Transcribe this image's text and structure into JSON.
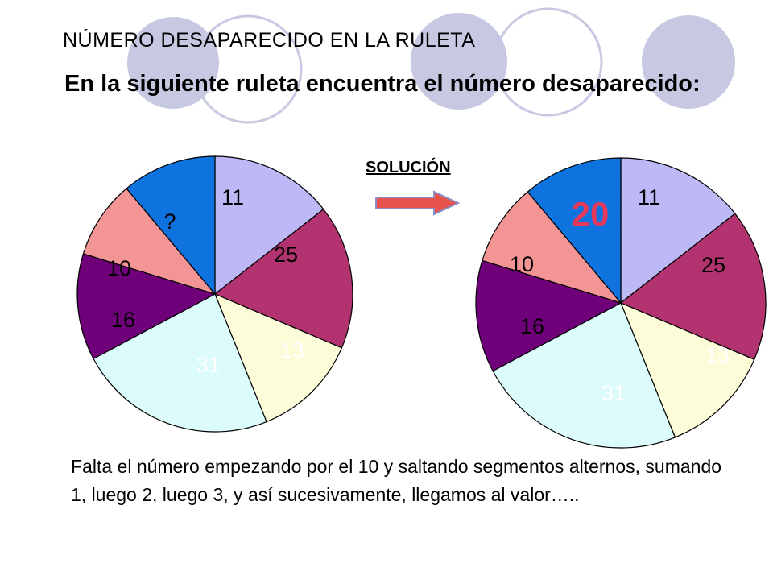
{
  "title": "NÚMERO DESAPARECIDO EN LA RULETA",
  "subtitle": "En la siguiente ruleta encuentra el número desaparecido:",
  "solution_label": "SOLUCIÓN",
  "explanation": "Falta el número empezando por el 10 y saltando segmentos alternos, sumando 1, luego 2, luego 3, y así sucesivamente, llegamos al valor…..",
  "colors": {
    "lavender": "#bdb9f7",
    "magenta": "#b33270",
    "cream": "#fdfcd9",
    "light_cyan": "#dcfbfb",
    "purple": "#70007a",
    "salmon": "#f49595",
    "blue": "#0f73df",
    "deco_circles": "#c7c9e3",
    "answer_red": "#e8385a",
    "arrow_red": "#e8524d"
  },
  "left_wheel": {
    "segments": [
      {
        "label": "11",
        "color": "lavender",
        "text_color": "#000000"
      },
      {
        "label": "25",
        "color": "magenta",
        "text_color": "#000000"
      },
      {
        "label": "13",
        "color": "cream",
        "text_color": "#ffffff"
      },
      {
        "label": "31",
        "color": "light_cyan",
        "text_color": "#ffffff"
      },
      {
        "label": "16",
        "color": "purple",
        "text_color": "#000000"
      },
      {
        "label": "10",
        "color": "salmon",
        "text_color": "#000000"
      },
      {
        "label": "?",
        "color": "blue",
        "text_color": "#000000"
      }
    ]
  },
  "right_wheel": {
    "segments": [
      {
        "label": "11",
        "color": "lavender",
        "text_color": "#000000"
      },
      {
        "label": "25",
        "color": "magenta",
        "text_color": "#000000"
      },
      {
        "label": "13",
        "color": "cream",
        "text_color": "#ffffff"
      },
      {
        "label": "31",
        "color": "light_cyan",
        "text_color": "#ffffff"
      },
      {
        "label": "16",
        "color": "purple",
        "text_color": "#000000"
      },
      {
        "label": "10",
        "color": "salmon",
        "text_color": "#000000"
      },
      {
        "label": "20",
        "color": "blue",
        "text_color": "#e8385a",
        "highlight": true
      }
    ]
  }
}
